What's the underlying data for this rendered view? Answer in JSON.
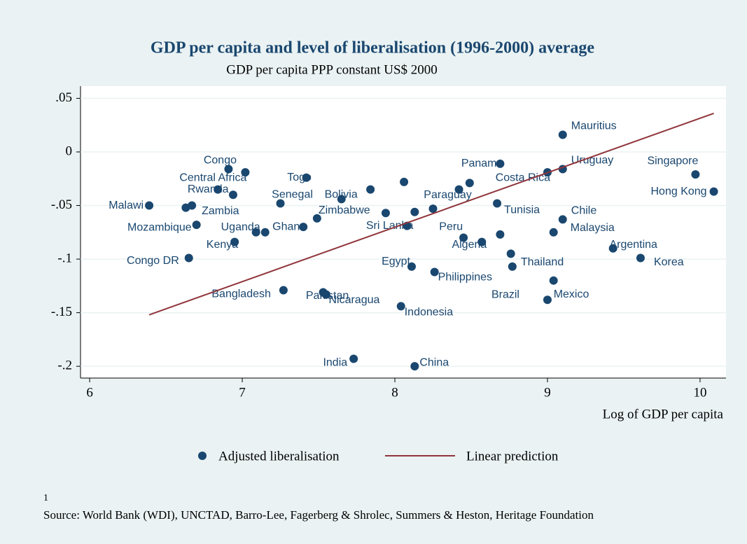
{
  "chart_data": {
    "type": "scatter",
    "title": "GDP per capita and level of liberalisation (1996-2000) average",
    "subtitle": "GDP per capita PPP constant US$ 2000",
    "x_label": "Log of GDP per capita",
    "note": "1",
    "source": "Source: World Bank (WDI), UNCTAD, Barro-Lee, Fagerberg & Shrolec, Summers & Heston, Heritage Foundation",
    "xlim": [
      5.94,
      10.17
    ],
    "xticks": [
      6,
      7,
      8,
      9,
      10
    ],
    "ylim": [
      -0.211,
      0.0614
    ],
    "yticks": [
      {
        "value": 0.05,
        "label": ".05"
      },
      0,
      {
        "value": -0.05,
        "label": "-.05"
      },
      {
        "value": -0.1,
        "label": "-.1"
      },
      {
        "value": -0.15,
        "label": "-.15"
      },
      {
        "value": -0.2,
        "label": "-.2"
      }
    ],
    "grid": true,
    "series": [
      {
        "name": "Adjusted liberalisation",
        "type": "scatter",
        "color": "#1a476f",
        "labels": [
          "Malawi",
          null,
          "Zambia",
          "Mozambique",
          "Rwanda",
          "Congo",
          "Central Africa",
          null,
          "Kenya",
          "Congo DR",
          "Uganda",
          null,
          "Bangladesh",
          "Senegal",
          "Togo",
          "Ghana",
          "Zimbabwe",
          "Bolivia",
          null,
          "Pakistan",
          "Nicaragua",
          "India",
          "China",
          "Egypt",
          "Indonesia",
          "Philippines",
          null,
          null,
          "Sri Lanka",
          null,
          null,
          "Paraguay",
          null,
          "Peru",
          "Algeria",
          null,
          "Tunisia",
          null,
          "Thailand",
          "Brazil",
          "Mexico",
          "Malaysia",
          "Chile",
          "Argentina",
          "Korea",
          "Hong Kong",
          "Costa Rica",
          "Panama",
          "Uruguay",
          "Mauritius",
          "Singapore"
        ],
        "x": [
          6.39,
          6.63,
          6.67,
          6.7,
          6.84,
          6.91,
          7.02,
          6.94,
          6.95,
          6.65,
          7.09,
          7.15,
          7.27,
          7.25,
          7.42,
          7.4,
          7.49,
          7.65,
          7.84,
          7.53,
          7.55,
          7.73,
          8.13,
          8.11,
          8.04,
          8.26,
          8.06,
          8.13,
          8.08,
          7.94,
          8.25,
          8.42,
          8.49,
          8.45,
          8.57,
          8.69,
          8.67,
          8.76,
          8.77,
          9.0,
          9.04,
          9.04,
          9.1,
          9.43,
          9.61,
          10.09,
          9.0,
          8.69,
          9.1,
          9.1,
          9.97
        ],
        "values": [
          -0.05,
          -0.052,
          -0.05,
          -0.068,
          -0.035,
          -0.016,
          -0.019,
          -0.04,
          -0.084,
          -0.099,
          -0.075,
          -0.075,
          -0.129,
          -0.048,
          -0.024,
          -0.07,
          -0.062,
          -0.044,
          -0.035,
          -0.131,
          -0.133,
          -0.193,
          -0.2,
          -0.107,
          -0.144,
          -0.112,
          -0.028,
          -0.056,
          -0.069,
          -0.057,
          -0.053,
          -0.035,
          -0.029,
          -0.08,
          -0.084,
          -0.077,
          -0.048,
          -0.095,
          -0.107,
          -0.138,
          -0.12,
          -0.075,
          -0.063,
          -0.09,
          -0.099,
          -0.037,
          -0.019,
          -0.011,
          -0.016,
          0.016,
          -0.021
        ]
      },
      {
        "name": "Linear prediction",
        "type": "line",
        "color": "#90353b",
        "x": [
          6.39,
          10.09
        ],
        "values": [
          -0.152,
          0.036
        ]
      }
    ]
  }
}
